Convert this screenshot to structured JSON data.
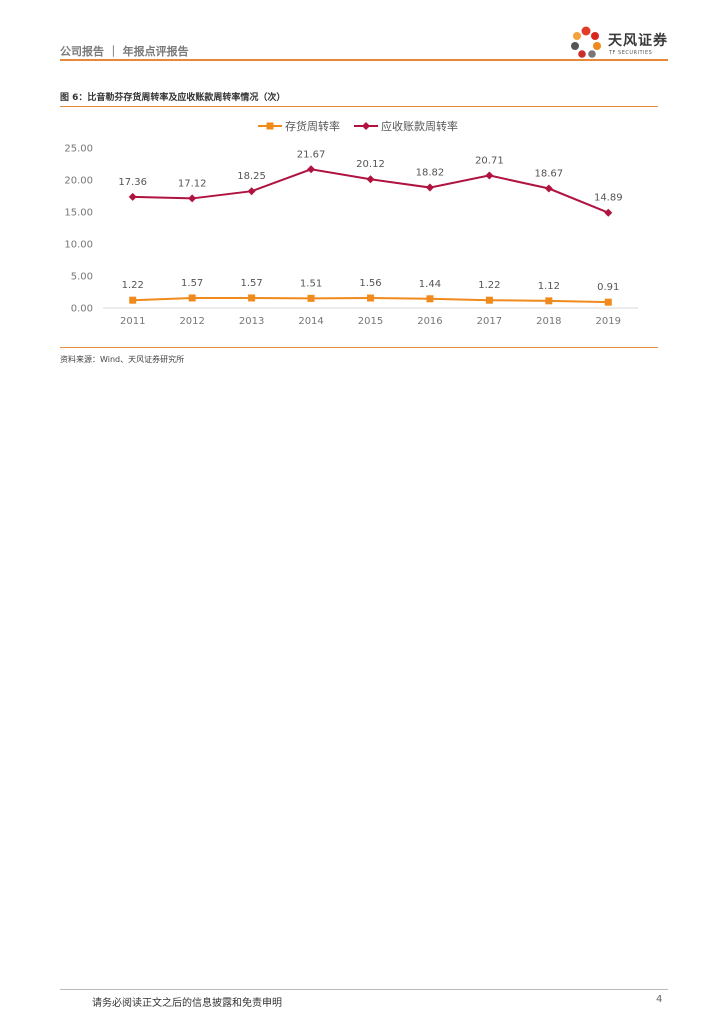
{
  "header": {
    "left_text": "公司报告 ｜ 年报点评报告",
    "logo_cn": "天风证券",
    "logo_en": "TF SECURITIES"
  },
  "figure": {
    "title": "图 6：比音勒芬存货周转率及应收账款周转率情况（次）",
    "source": "资料来源：Wind、天风证券研究所"
  },
  "chart_data": {
    "type": "line",
    "title": "",
    "categories": [
      "2011",
      "2012",
      "2013",
      "2014",
      "2015",
      "2016",
      "2017",
      "2018",
      "2019"
    ],
    "series": [
      {
        "name": "存货周转率",
        "color": "#f08a1c",
        "marker": "square",
        "values": [
          1.22,
          1.57,
          1.57,
          1.51,
          1.56,
          1.44,
          1.22,
          1.12,
          0.91
        ]
      },
      {
        "name": "应收账款周转率",
        "color": "#b0133f",
        "marker": "diamond",
        "values": [
          17.36,
          17.12,
          18.25,
          21.67,
          20.12,
          18.82,
          20.71,
          18.67,
          14.89
        ]
      }
    ],
    "yticks": [
      "0.00",
      "5.00",
      "10.00",
      "15.00",
      "20.00",
      "25.00"
    ],
    "ylim": [
      0,
      25
    ],
    "legend_position": "top-center",
    "grid": false
  },
  "footer": {
    "disclaimer": "请务必阅读正文之后的信息披露和免责申明",
    "page": "4"
  }
}
